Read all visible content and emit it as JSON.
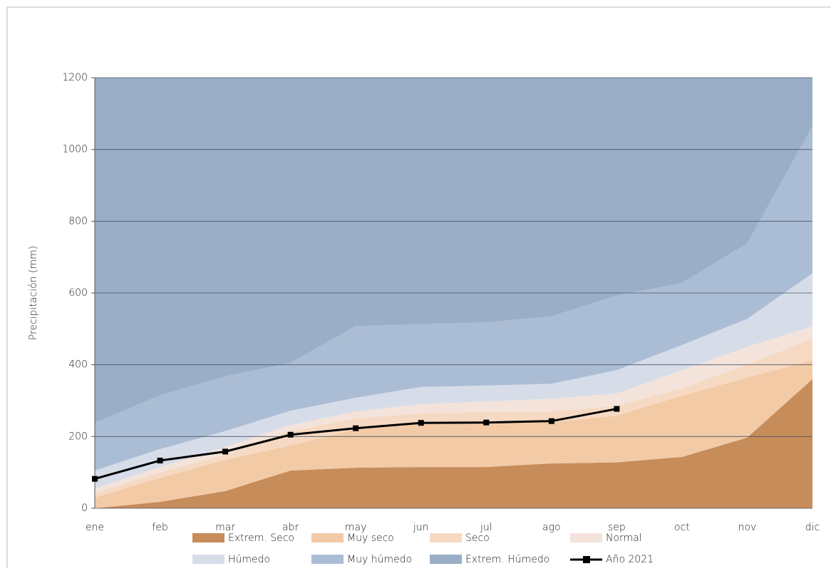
{
  "chart_data": {
    "type": "stacked_area",
    "y_label": "Precipitación (mm)",
    "categories": [
      "ene",
      "feb",
      "mar",
      "abr",
      "may",
      "jun",
      "jul",
      "ago",
      "sep",
      "oct",
      "nov",
      "dic"
    ],
    "series": [
      {
        "name": "Extrem. Seco",
        "color": "#c68c5a",
        "values": [
          0,
          18,
          48,
          105,
          113,
          115,
          115,
          125,
          128,
          143,
          197,
          360
        ]
      },
      {
        "name": "Muy seco",
        "color": "#f3caa6",
        "values": [
          30,
          67,
          87,
          70,
          107,
          120,
          123,
          115,
          130,
          171,
          167,
          53
        ]
      },
      {
        "name": "Seco",
        "color": "#f6d9c2",
        "values": [
          12,
          15,
          15,
          40,
          30,
          30,
          30,
          30,
          27,
          21,
          36,
          60
        ]
      },
      {
        "name": "Normal",
        "color": "#f3e3da",
        "values": [
          13,
          15,
          20,
          17,
          20,
          25,
          30,
          35,
          35,
          50,
          50,
          34
        ]
      },
      {
        "name": "Húmedo",
        "color": "#d6dde9",
        "values": [
          50,
          50,
          45,
          40,
          38,
          48,
          44,
          42,
          65,
          70,
          78,
          148
        ]
      },
      {
        "name": "Muy húmedo",
        "color": "#abbdd5",
        "values": [
          133,
          150,
          153,
          133,
          200,
          175,
          176,
          188,
          208,
          173,
          210,
          410
        ]
      },
      {
        "name": "Extrem. Húmedo",
        "color": "#9aaec7",
        "values": [
          962,
          885,
          832,
          795,
          692,
          687,
          682,
          665,
          607,
          572,
          462,
          135
        ]
      },
      {
        "name": "Año 2021",
        "type": "line",
        "color": "#000000",
        "values": [
          82,
          133,
          158,
          205,
          223,
          238,
          239,
          243,
          277,
          null,
          null,
          null
        ]
      }
    ],
    "ylim": [
      0,
      1200
    ],
    "yticks": [
      0,
      200,
      400,
      600,
      800,
      1000,
      1200
    ],
    "grid": true
  }
}
